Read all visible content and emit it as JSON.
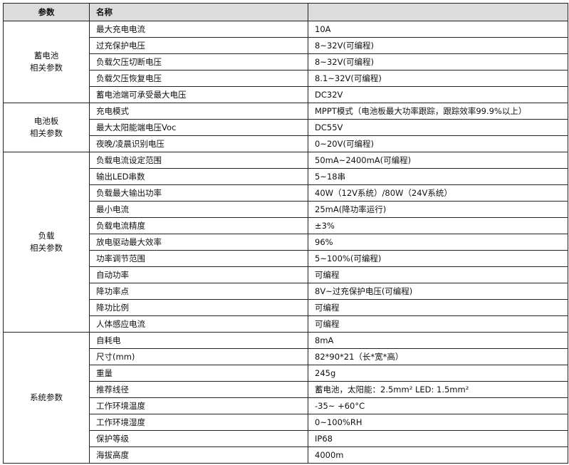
{
  "header": {
    "param": "参数",
    "name": "名称",
    "value": ""
  },
  "groups": [
    {
      "label": "蓄电池\n相关参数",
      "rows": [
        {
          "name": "最大充电电流",
          "value": "10A"
        },
        {
          "name": "过充保护电压",
          "value": "8~32V(可编程)"
        },
        {
          "name": "负载欠压切断电压",
          "value": "8~32V(可编程)"
        },
        {
          "name": "负载欠压恢复电压",
          "value": "8.1~32V(可编程)"
        },
        {
          "name": "蓄电池端可承受最大电压",
          "value": "DC32V"
        }
      ]
    },
    {
      "label": "电池板\n相关参数",
      "rows": [
        {
          "name": "充电模式",
          "value": "MPPT模式（电池板最大功率跟踪，跟踪效率99.9%以上）"
        },
        {
          "name": "最大太阳能端电压Voc",
          "value": "DC55V"
        },
        {
          "name": "夜晚/凌晨识别电压",
          "value": "0~20V(可编程)"
        }
      ]
    },
    {
      "label": "负载\n相关参数",
      "rows": [
        {
          "name": "负载电流设定范围",
          "value": "50mA~2400mA(可编程)"
        },
        {
          "name": "输出LED串数",
          "value": "5~18串"
        },
        {
          "name": "负载最大输出功率",
          "value": "40W（12V系统）/80W（24V系统）"
        },
        {
          "name": "最小电流",
          "value": "25mA(降功率运行)"
        },
        {
          "name": "负载电流精度",
          "value": "±3%"
        },
        {
          "name": "放电驱动最大效率",
          "value": "96%"
        },
        {
          "name": "功率调节范围",
          "value": "5~100%(可编程)"
        },
        {
          "name": "自动功率",
          "value": "可编程"
        },
        {
          "name": "降功率点",
          "value": "8V~过充保护电压(可编程)"
        },
        {
          "name": "降功比例",
          "value": "可编程"
        },
        {
          "name": "人体感应电流",
          "value": "可编程"
        }
      ]
    },
    {
      "label": "系统参数",
      "rows": [
        {
          "name": "自耗电",
          "value": "8mA"
        },
        {
          "name": "尺寸(mm)",
          "value": "82*90*21（长*宽*高）"
        },
        {
          "name": "重量",
          "value": "245g"
        },
        {
          "name": "推荐线径",
          "value": "蓄电池，太阳能：2.5mm²   LED: 1.5mm²"
        },
        {
          "name": "工作环境温度",
          "value": "-35~ +60°C"
        },
        {
          "name": "工作环境湿度",
          "value": "0~100%RH"
        },
        {
          "name": "保护等级",
          "value": "IP68"
        },
        {
          "name": "海拔高度",
          "value": "4000m"
        }
      ]
    }
  ]
}
